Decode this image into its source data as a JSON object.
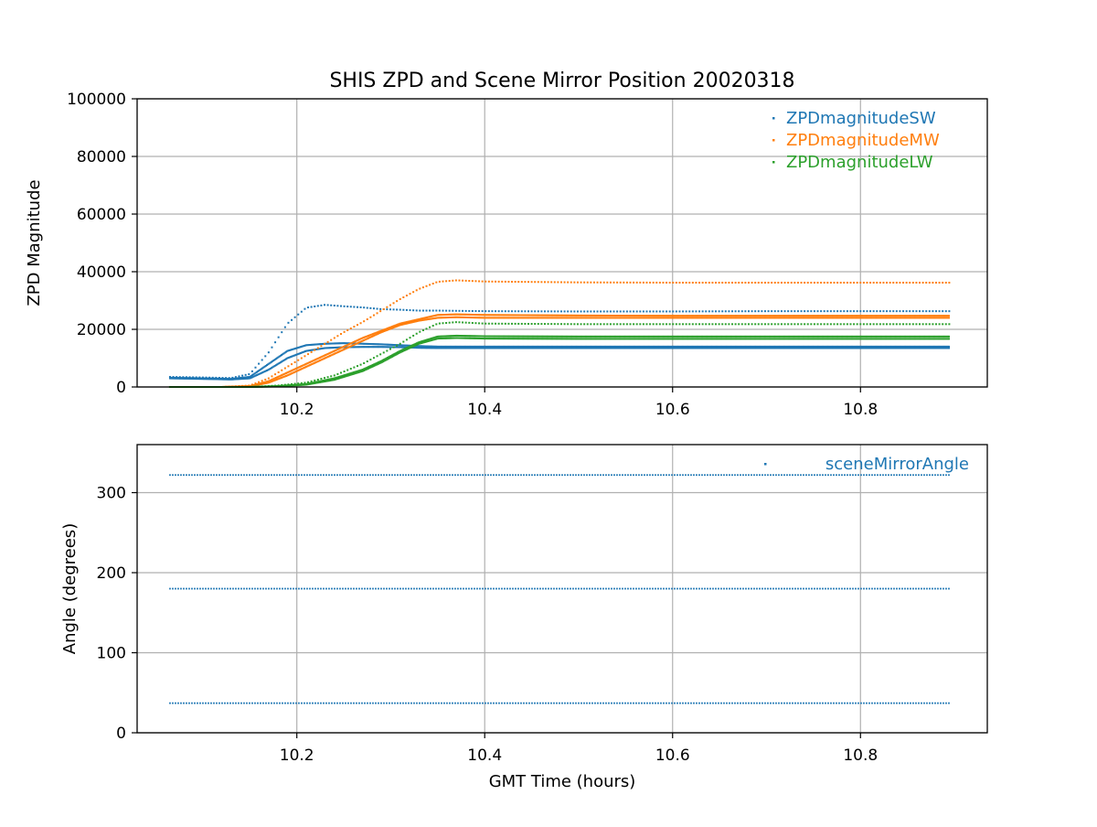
{
  "figure": {
    "title": "SHIS ZPD and Scene Mirror Position 20020318",
    "xlabel": "GMT Time (hours)"
  },
  "chart_data": [
    {
      "type": "scatter",
      "ylabel": "ZPD Magnitude",
      "xlim": [
        10.03,
        10.935
      ],
      "ylim": [
        0,
        100000
      ],
      "x_ticks": [
        10.2,
        10.4,
        10.6,
        10.8
      ],
      "x_tick_labels": [
        "10.2",
        "10.4",
        "10.6",
        "10.8"
      ],
      "y_ticks": [
        0,
        20000,
        40000,
        60000,
        80000,
        100000
      ],
      "y_tick_labels": [
        "0",
        "20000",
        "40000",
        "60000",
        "80000",
        "100000"
      ],
      "grid": true,
      "legend_position": "top-right",
      "series": [
        {
          "name": "ZPDmagnitudeSW",
          "color": "#1f77b4",
          "x": [
            10.065,
            10.1,
            10.13,
            10.15,
            10.17,
            10.19,
            10.21,
            10.23,
            10.25,
            10.27,
            10.29,
            10.31,
            10.33,
            10.35,
            10.4,
            10.5,
            10.6,
            10.7,
            10.8,
            10.895
          ],
          "upper": [
            3500,
            3300,
            3100,
            4500,
            12000,
            22000,
            27500,
            28500,
            28000,
            27600,
            27000,
            26800,
            26500,
            26500,
            26300,
            26200,
            26200,
            26300,
            26300,
            26300
          ],
          "middle": [
            3200,
            3000,
            2800,
            3500,
            8000,
            12500,
            14500,
            15000,
            15200,
            15000,
            14800,
            14500,
            14200,
            14000,
            14000,
            14000,
            14000,
            14000,
            14000,
            14000
          ],
          "lower": [
            3000,
            2800,
            2600,
            3000,
            6000,
            10000,
            12500,
            13500,
            13800,
            13900,
            13900,
            13800,
            13600,
            13500,
            13500,
            13500,
            13500,
            13500,
            13500,
            13500
          ]
        },
        {
          "name": "ZPDmagnitudeMW",
          "color": "#ff7f0e",
          "x": [
            10.065,
            10.12,
            10.15,
            10.17,
            10.19,
            10.21,
            10.23,
            10.25,
            10.27,
            10.29,
            10.31,
            10.33,
            10.35,
            10.37,
            10.4,
            10.5,
            10.6,
            10.7,
            10.8,
            10.895
          ],
          "upper": [
            0,
            0,
            500,
            3000,
            7000,
            11000,
            15000,
            19000,
            22500,
            26500,
            30500,
            34000,
            36500,
            37000,
            36600,
            36300,
            36200,
            36200,
            36200,
            36200
          ],
          "middle": [
            0,
            0,
            300,
            2000,
            5000,
            8000,
            11000,
            14000,
            17000,
            19500,
            22000,
            23500,
            25000,
            25200,
            25000,
            24800,
            24700,
            24700,
            24700,
            24700
          ],
          "lower": [
            0,
            0,
            200,
            1500,
            4000,
            7000,
            10000,
            13000,
            16000,
            19000,
            21500,
            23000,
            24000,
            24200,
            24000,
            24000,
            24000,
            24000,
            24000,
            24000
          ]
        },
        {
          "name": "ZPDmagnitudeLW",
          "color": "#2ca02c",
          "x": [
            10.065,
            10.15,
            10.18,
            10.21,
            10.24,
            10.27,
            10.29,
            10.31,
            10.33,
            10.35,
            10.37,
            10.4,
            10.5,
            10.6,
            10.7,
            10.8,
            10.895
          ],
          "upper": [
            0,
            0,
            500,
            1500,
            4000,
            8000,
            11500,
            15000,
            19000,
            22000,
            22500,
            22000,
            21800,
            21800,
            21800,
            21800,
            21800
          ],
          "middle": [
            0,
            0,
            300,
            1000,
            3000,
            6000,
            9000,
            12500,
            15500,
            17500,
            17800,
            17600,
            17500,
            17500,
            17500,
            17500,
            17500
          ],
          "lower": [
            0,
            0,
            200,
            800,
            2500,
            5500,
            8500,
            12000,
            15000,
            16800,
            17000,
            16800,
            16700,
            16700,
            16700,
            16700,
            16700
          ]
        }
      ]
    },
    {
      "type": "scatter",
      "ylabel": "Angle (degrees)",
      "xlim": [
        10.03,
        10.935
      ],
      "ylim": [
        0,
        360
      ],
      "x_ticks": [
        10.2,
        10.4,
        10.6,
        10.8
      ],
      "x_tick_labels": [
        "10.2",
        "10.4",
        "10.6",
        "10.8"
      ],
      "y_ticks": [
        0,
        100,
        200,
        300
      ],
      "y_tick_labels": [
        "0",
        "100",
        "200",
        "300"
      ],
      "grid": true,
      "legend_position": "top-right",
      "series": [
        {
          "name": "sceneMirrorAngle",
          "color": "#1f77b4",
          "x_range": [
            10.065,
            10.895
          ],
          "levels": [
            322,
            180,
            37
          ]
        }
      ]
    }
  ]
}
